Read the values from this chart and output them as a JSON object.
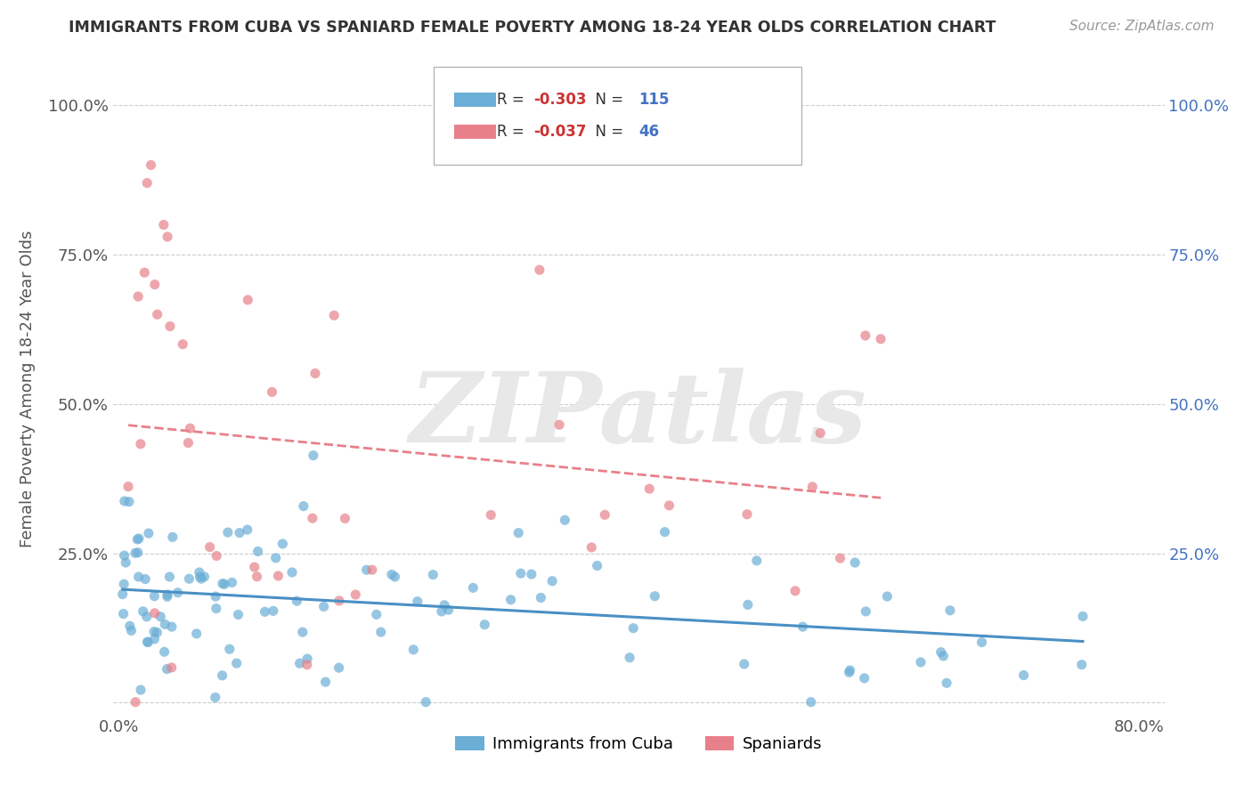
{
  "title": "IMMIGRANTS FROM CUBA VS SPANIARD FEMALE POVERTY AMONG 18-24 YEAR OLDS CORRELATION CHART",
  "source": "Source: ZipAtlas.com",
  "ylabel": "Female Poverty Among 18-24 Year Olds",
  "xlim": [
    -0.005,
    0.82
  ],
  "ylim": [
    -0.02,
    1.07
  ],
  "ytick_vals": [
    0.0,
    0.25,
    0.5,
    0.75,
    1.0
  ],
  "ytick_labels_left": [
    "",
    "25.0%",
    "50.0%",
    "75.0%",
    "100.0%"
  ],
  "ytick_labels_right": [
    "",
    "25.0%",
    "50.0%",
    "75.0%",
    "100.0%"
  ],
  "xtick_vals": [
    0.0,
    0.8
  ],
  "xtick_labels": [
    "0.0%",
    "80.0%"
  ],
  "legend_labels": [
    "Immigrants from Cuba",
    "Spaniards"
  ],
  "cuba_color": "#6baed6",
  "spain_color": "#e8808a",
  "cuba_line_color": "#4a90c4",
  "spain_line_color": "#e8808a",
  "cuba_R": -0.303,
  "cuba_N": 115,
  "spain_R": -0.037,
  "spain_N": 46,
  "background_color": "#ffffff",
  "grid_color": "#cccccc",
  "title_color": "#333333",
  "source_color": "#999999",
  "axis_color": "#4472c4",
  "left_axis_color": "#555555",
  "watermark_color": "#e8e8e8"
}
